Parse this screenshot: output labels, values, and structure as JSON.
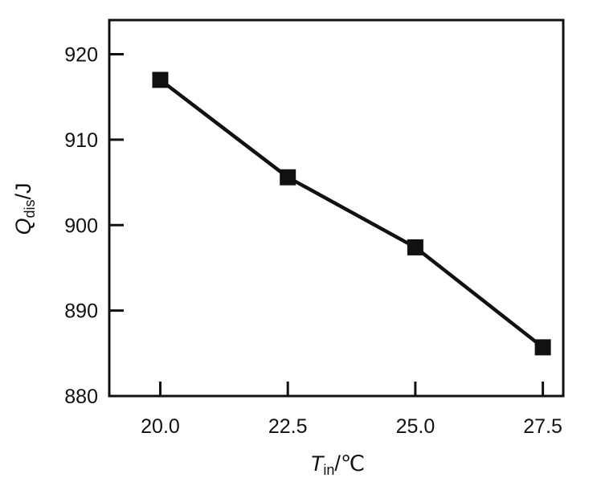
{
  "chart_data": {
    "type": "line",
    "title": "",
    "x": [
      20.0,
      22.5,
      25.0,
      27.5
    ],
    "series": [
      {
        "values": [
          917.0,
          905.6,
          897.4,
          885.7
        ]
      }
    ],
    "xlim": [
      19.0,
      27.9
    ],
    "ylim": [
      880,
      924
    ],
    "xticks": [
      "20.0",
      "22.5",
      "25.0",
      "27.5"
    ],
    "yticks": [
      "880",
      "890",
      "900",
      "910",
      "920"
    ],
    "xtick_values": [
      20.0,
      22.5,
      25.0,
      27.5
    ],
    "ytick_values": [
      880,
      890,
      900,
      910,
      920
    ],
    "xlabel": {
      "main": "T",
      "sub": "in",
      "unit": "/℃"
    },
    "ylabel": {
      "main": "Q",
      "sub": "dis",
      "unit": "/J"
    },
    "grid": false,
    "legend": "none",
    "colors": {
      "line": "#111111",
      "marker": "#111111",
      "axes": "#111111"
    },
    "marker": "square"
  }
}
